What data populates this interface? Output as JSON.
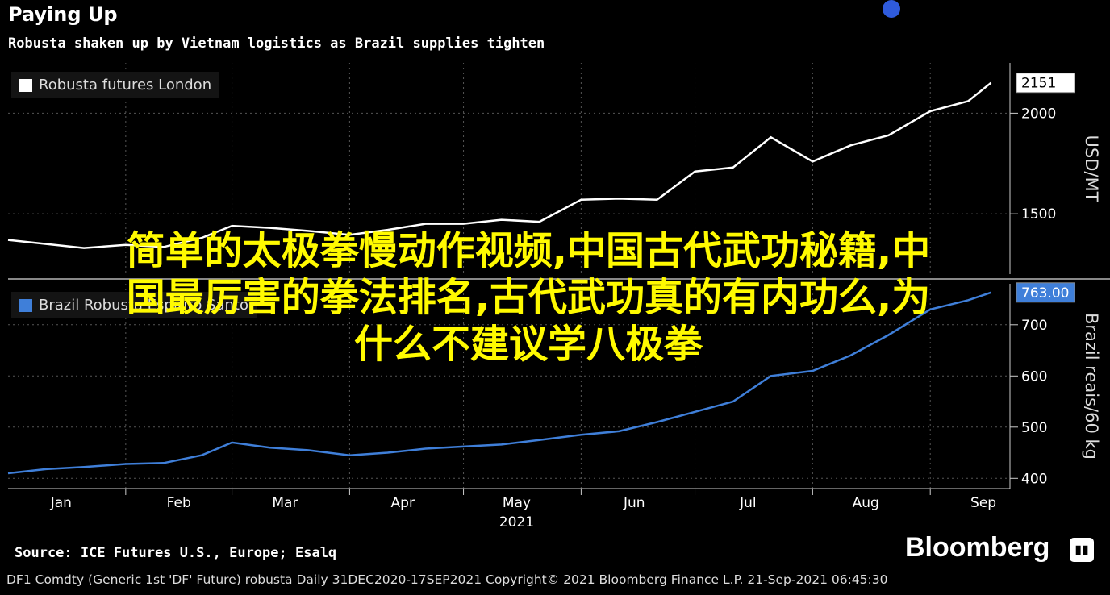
{
  "title": "Paying Up",
  "subtitle": "Robusta shaken up by Vietnam logistics as Brazil supplies tighten",
  "overlay_lines": [
    "简单的太极拳慢动作视频,中国古代武功秘籍,中",
    "国最厉害的拳法排名,古代武功真的有内功么,为",
    "什么不建议学八极拳"
  ],
  "source": "Source: ICE Futures U.S., Europe; Esalq",
  "brand": "Bloomberg",
  "brand_icon": "bar-chart-icon",
  "footer": "DF1 Comdty (Generic 1st 'DF' Future) robusta  Daily 31DEC2020-17SEP2021  Copyright© 2021 Bloomberg Finance L.P.  21-Sep-2021 06:45:30",
  "colors": {
    "background": "#000000",
    "robusta_line": "#ffffff",
    "brazil_line": "#3f7fd9",
    "overlay_text": "#fffa00"
  },
  "chart_data": [
    {
      "type": "line",
      "title": "",
      "ylabel": "USD/MT",
      "ylim": [
        1200,
        2250
      ],
      "yticks": [
        1500,
        2000
      ],
      "last_value_label": "2151",
      "grid": true,
      "legend": "top-left",
      "series": [
        {
          "name": "Robusta futures London",
          "color": "#ffffff",
          "x": [
            "2021-01-01",
            "2021-01-11",
            "2021-01-21",
            "2021-02-01",
            "2021-02-11",
            "2021-02-21",
            "2021-03-01",
            "2021-03-11",
            "2021-03-21",
            "2021-04-01",
            "2021-04-11",
            "2021-04-21",
            "2021-05-01",
            "2021-05-11",
            "2021-05-21",
            "2021-06-01",
            "2021-06-11",
            "2021-06-21",
            "2021-07-01",
            "2021-07-11",
            "2021-07-21",
            "2021-08-01",
            "2021-08-11",
            "2021-08-21",
            "2021-09-01",
            "2021-09-11",
            "2021-09-17"
          ],
          "values": [
            1370,
            1350,
            1330,
            1345,
            1335,
            1380,
            1440,
            1430,
            1415,
            1395,
            1420,
            1450,
            1450,
            1470,
            1460,
            1570,
            1575,
            1570,
            1710,
            1730,
            1880,
            1760,
            1840,
            1890,
            2010,
            2060,
            2151
          ]
        }
      ]
    },
    {
      "type": "line",
      "title": "",
      "ylabel": "Brazil reais/60 kg",
      "ylim": [
        380,
        780
      ],
      "yticks": [
        400,
        500,
        600,
        700
      ],
      "last_value_label": "763.00",
      "grid": true,
      "legend": "top-left",
      "series": [
        {
          "name": "Brazil Robusta Espirito Santo",
          "color": "#3f7fd9",
          "x": [
            "2021-01-01",
            "2021-01-11",
            "2021-01-21",
            "2021-02-01",
            "2021-02-11",
            "2021-02-21",
            "2021-03-01",
            "2021-03-11",
            "2021-03-21",
            "2021-04-01",
            "2021-04-11",
            "2021-04-21",
            "2021-05-01",
            "2021-05-11",
            "2021-05-21",
            "2021-06-01",
            "2021-06-11",
            "2021-06-21",
            "2021-07-01",
            "2021-07-11",
            "2021-07-21",
            "2021-08-01",
            "2021-08-11",
            "2021-08-21",
            "2021-09-01",
            "2021-09-11",
            "2021-09-17"
          ],
          "values": [
            410,
            418,
            422,
            428,
            430,
            445,
            470,
            460,
            455,
            445,
            450,
            458,
            462,
            466,
            475,
            485,
            492,
            510,
            530,
            550,
            600,
            610,
            640,
            680,
            730,
            748,
            763
          ]
        }
      ]
    }
  ],
  "x_axis": {
    "ticks": [
      "Jan",
      "Feb",
      "Mar",
      "Apr",
      "May",
      "Jun",
      "Jul",
      "Aug",
      "Sep"
    ],
    "year_label": "2021"
  }
}
